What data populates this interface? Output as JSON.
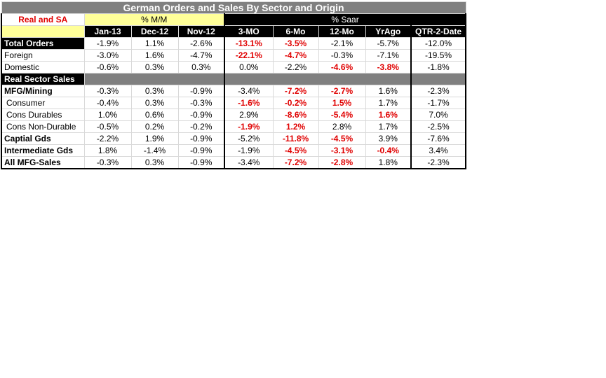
{
  "title": "German Orders and Sales By Sector and Origin",
  "label_real_sa": "Real and SA",
  "group_mm": "% M/M",
  "group_saar": "% Saar",
  "columns": [
    "Jan-13",
    "Dec-12",
    "Nov-12",
    "3-MO",
    "6-Mo",
    "12-Mo",
    "YrAgo",
    "QTR-2-Date"
  ],
  "rows": [
    {
      "label": "Total Orders",
      "style": "dark",
      "values": [
        "-1.9%",
        "1.1%",
        "-2.6%",
        "-13.1%",
        "-3.5%",
        "-2.1%",
        "-5.7%",
        "-12.0%"
      ],
      "neg": [
        3,
        4
      ]
    },
    {
      "label": "Foreign",
      "style": "plain",
      "values": [
        "-3.0%",
        "1.6%",
        "-4.7%",
        "-22.1%",
        "-4.7%",
        "-0.3%",
        "-7.1%",
        "-19.5%"
      ],
      "neg": [
        3,
        4
      ]
    },
    {
      "label": "Domestic",
      "style": "plain",
      "values": [
        "-0.6%",
        "0.3%",
        "0.3%",
        "0.0%",
        "-2.2%",
        "-4.6%",
        "-3.8%",
        "-1.8%"
      ],
      "neg": [
        5,
        6
      ]
    },
    {
      "label": "Real Sector Sales",
      "style": "section",
      "values": [],
      "neg": []
    },
    {
      "label": "MFG/Mining",
      "style": "bold",
      "values": [
        "-0.3%",
        "0.3%",
        "-0.9%",
        "-3.4%",
        "-7.2%",
        "-2.7%",
        "1.6%",
        "-2.3%"
      ],
      "neg": [
        4,
        5
      ]
    },
    {
      "label": "Consumer",
      "style": "indent",
      "values": [
        "-0.4%",
        "0.3%",
        "-0.3%",
        "-1.6%",
        "-0.2%",
        "1.5%",
        "1.7%",
        "-1.7%"
      ],
      "neg": [
        3,
        4,
        5
      ]
    },
    {
      "label": "Cons Durables",
      "style": "indent",
      "values": [
        "1.0%",
        "0.6%",
        "-0.9%",
        "2.9%",
        "-8.6%",
        "-5.4%",
        "1.6%",
        "7.0%"
      ],
      "neg": [
        4,
        5,
        6
      ]
    },
    {
      "label": "Cons Non-Durable",
      "style": "indent",
      "values": [
        "-0.5%",
        "0.2%",
        "-0.2%",
        "-1.9%",
        "1.2%",
        "2.8%",
        "1.7%",
        "-2.5%"
      ],
      "neg": [
        3,
        4
      ]
    },
    {
      "label": "Captial Gds",
      "style": "bold",
      "values": [
        "-2.2%",
        "1.9%",
        "-0.9%",
        "-5.2%",
        "-11.8%",
        "-4.5%",
        "3.9%",
        "-7.6%"
      ],
      "neg": [
        4,
        5
      ]
    },
    {
      "label": "Intermediate Gds",
      "style": "bold",
      "values": [
        "1.8%",
        "-1.4%",
        "-0.9%",
        "-1.9%",
        "-4.5%",
        "-3.1%",
        "-0.4%",
        "3.4%"
      ],
      "neg": [
        4,
        5,
        6
      ]
    },
    {
      "label": "All MFG-Sales",
      "style": "bold",
      "values": [
        "-0.3%",
        "0.3%",
        "-0.9%",
        "-3.4%",
        "-7.2%",
        "-2.8%",
        "1.8%",
        "-2.3%"
      ],
      "neg": [
        4,
        5
      ]
    }
  ]
}
